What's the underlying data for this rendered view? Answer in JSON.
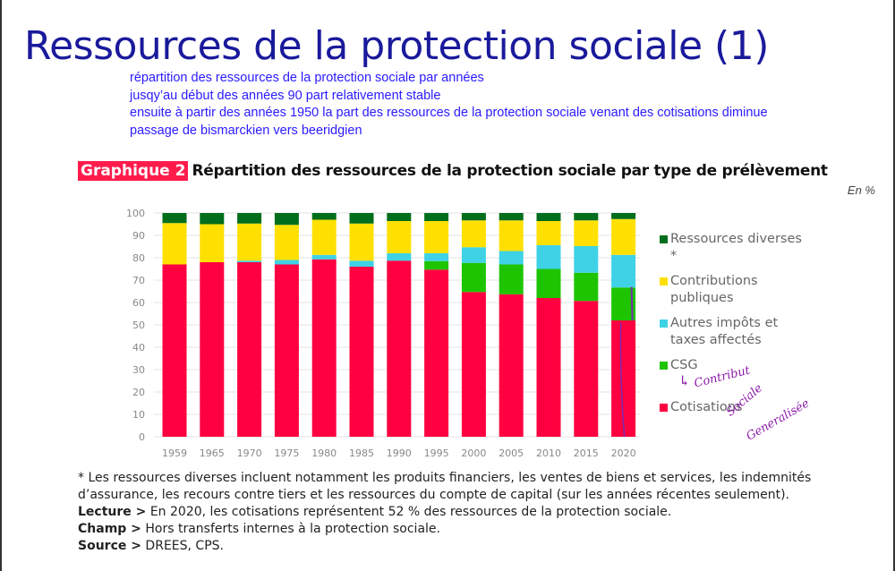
{
  "slide": {
    "title": "Ressources de la protection sociale (1)",
    "notes": [
      "répartition des ressources de la protection sociale par années",
      "jusqy’au début des années 90 part relativement stable",
      "ensuite à partir des années 1950 la part des ressources de la protection sociale venant des cotisations diminue",
      "passage de bismarckien vers beeridgien"
    ]
  },
  "figure": {
    "badge": "Graphique 2",
    "heading": "Répartition des ressources de la protection sociale par type de prélèvement",
    "unit": "En %"
  },
  "chart_data": {
    "type": "bar",
    "stacked": true,
    "title": "Répartition des ressources de la protection sociale par type de prélèvement",
    "ylabel": "En %",
    "ylim": [
      0,
      100
    ],
    "yticks": [
      "0",
      "10",
      "20",
      "30",
      "40",
      "50",
      "60",
      "70",
      "80",
      "90",
      "100"
    ],
    "grid": true,
    "legend_position": "right",
    "categories": [
      "1959",
      "1965",
      "1970",
      "1975",
      "1980",
      "1985",
      "1990",
      "1995",
      "2000",
      "2005",
      "2010",
      "2015",
      "2020"
    ],
    "series": [
      {
        "name": "Cotisations",
        "color": "#ff0040",
        "values": [
          77,
          78,
          78,
          77,
          79.3,
          76,
          78.7,
          74.7,
          64.7,
          63.7,
          62,
          60.7,
          52
        ]
      },
      {
        "name": "CSG",
        "color": "#1ec400",
        "values": [
          0,
          0,
          0,
          0,
          0,
          0,
          0,
          3.8,
          13,
          13.3,
          13,
          12.6,
          14.7
        ]
      },
      {
        "name": "Autres impôts et taxes affectés",
        "color": "#3fd2e6",
        "values": [
          0,
          0,
          0.7,
          2,
          2,
          2.7,
          3.3,
          3.5,
          7,
          6,
          10.6,
          11.9,
          14.6
        ]
      },
      {
        "name": "Contributions publiques",
        "color": "#ffe000",
        "values": [
          18.5,
          17,
          16.6,
          15.7,
          15.7,
          16.6,
          14.4,
          14.4,
          12,
          13.7,
          10.8,
          11.5,
          16
        ]
      },
      {
        "name": "Ressources diverses *",
        "color": "#006e1c",
        "values": [
          4.5,
          5,
          4.7,
          5.3,
          3,
          4.7,
          3.6,
          3.6,
          3.3,
          3.3,
          3.6,
          3.3,
          2.7
        ]
      }
    ],
    "legend": [
      {
        "label": "Ressources diverses *",
        "color": "#006e1c"
      },
      {
        "label": "Contributions publiques",
        "color": "#ffe000"
      },
      {
        "label": "Autres impôts et taxes affectés",
        "color": "#3fd2e6"
      },
      {
        "label": "CSG",
        "color": "#1ec400"
      },
      {
        "label": "Cotisations",
        "color": "#ff0040"
      }
    ]
  },
  "annotations": {
    "arrow": "↳",
    "hand1": "Contribut",
    "hand2": "Sociale",
    "hand3": "Generalisée"
  },
  "footer": {
    "note": "* Les ressources diverses incluent notamment les produits financiers, les ventes de biens et services, les indemnités d’assurance, les recours contre tiers et les ressources du compte de capital (sur les années récentes seulement).",
    "lecture_label": "Lecture >",
    "lecture": " En 2020, les cotisations représentent 52 % des ressources de la protection sociale.",
    "champ_label": "Champ >",
    "champ": " Hors transferts internes à la protection sociale.",
    "source_label": "Source >",
    "source": " DREES, CPS."
  }
}
